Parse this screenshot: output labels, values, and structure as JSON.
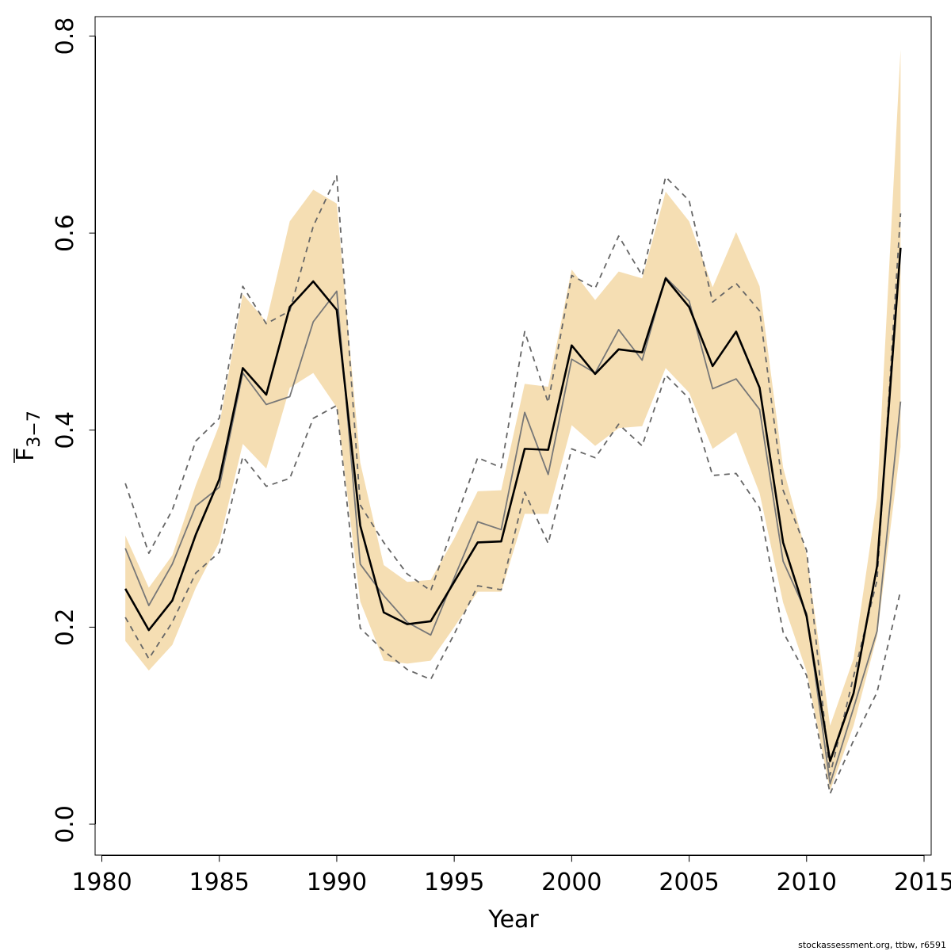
{
  "chart_data": {
    "type": "line",
    "xlabel": "Year",
    "ylabel_main": "F",
    "ylabel_sub": "3−7",
    "xlim": [
      1980,
      2015
    ],
    "ylim": [
      0.0,
      0.8
    ],
    "x_ticks": [
      1980,
      1985,
      1990,
      1995,
      2000,
      2005,
      2010,
      2015
    ],
    "x_tick_labels": [
      "1980",
      "1985",
      "1990",
      "1995",
      "2000",
      "2005",
      "2010",
      "2015"
    ],
    "y_ticks": [
      0.0,
      0.2,
      0.4,
      0.6,
      0.8
    ],
    "y_tick_labels": [
      "0.0",
      "0.2",
      "0.4",
      "0.6",
      "0.8"
    ],
    "grid": false,
    "legend": "none",
    "x": [
      1981,
      1982,
      1983,
      1984,
      1985,
      1986,
      1987,
      1988,
      1989,
      1990,
      1991,
      1992,
      1993,
      1994,
      1995,
      1996,
      1997,
      1998,
      1999,
      2000,
      2001,
      2002,
      2003,
      2004,
      2005,
      2006,
      2007,
      2008,
      2009,
      2010,
      2011,
      2012,
      2013,
      2014
    ],
    "series": [
      {
        "role": "band_lower",
        "color": "#f5deb3",
        "values": [
          0.186,
          0.156,
          0.182,
          0.24,
          0.286,
          0.386,
          0.361,
          0.443,
          0.458,
          0.423,
          0.226,
          0.166,
          0.163,
          0.166,
          0.2,
          0.236,
          0.236,
          0.315,
          0.315,
          0.405,
          0.384,
          0.402,
          0.404,
          0.463,
          0.438,
          0.381,
          0.398,
          0.336,
          0.225,
          0.155,
          0.034,
          0.1,
          0.191,
          0.383
        ]
      },
      {
        "role": "band_upper",
        "color": "#f5deb3",
        "values": [
          0.293,
          0.24,
          0.273,
          0.344,
          0.405,
          0.538,
          0.51,
          0.612,
          0.644,
          0.63,
          0.367,
          0.263,
          0.246,
          0.248,
          0.29,
          0.338,
          0.339,
          0.447,
          0.444,
          0.563,
          0.532,
          0.561,
          0.554,
          0.642,
          0.612,
          0.545,
          0.601,
          0.546,
          0.362,
          0.274,
          0.1,
          0.168,
          0.331,
          0.786
        ]
      },
      {
        "role": "dashed_upper",
        "color": "#666666",
        "values": [
          0.346,
          0.275,
          0.319,
          0.389,
          0.412,
          0.546,
          0.508,
          0.521,
          0.607,
          0.658,
          0.324,
          0.286,
          0.254,
          0.237,
          0.305,
          0.372,
          0.362,
          0.5,
          0.428,
          0.557,
          0.544,
          0.597,
          0.557,
          0.657,
          0.633,
          0.53,
          0.549,
          0.521,
          0.339,
          0.278,
          0.05,
          0.15,
          0.248,
          0.62
        ]
      },
      {
        "role": "dashed_lower",
        "color": "#666666",
        "values": [
          0.21,
          0.168,
          0.205,
          0.255,
          0.276,
          0.373,
          0.343,
          0.351,
          0.412,
          0.425,
          0.199,
          0.176,
          0.157,
          0.147,
          0.193,
          0.242,
          0.238,
          0.337,
          0.285,
          0.381,
          0.372,
          0.406,
          0.384,
          0.456,
          0.432,
          0.354,
          0.356,
          0.321,
          0.195,
          0.151,
          0.031,
          0.085,
          0.134,
          0.237
        ]
      },
      {
        "role": "grey_line",
        "color": "#777777",
        "values": [
          0.28,
          0.222,
          0.264,
          0.323,
          0.342,
          0.458,
          0.426,
          0.434,
          0.51,
          0.541,
          0.264,
          0.232,
          0.205,
          0.192,
          0.25,
          0.307,
          0.299,
          0.418,
          0.355,
          0.472,
          0.458,
          0.502,
          0.471,
          0.555,
          0.531,
          0.442,
          0.452,
          0.421,
          0.267,
          0.214,
          0.041,
          0.118,
          0.196,
          0.429
        ]
      },
      {
        "role": "main_line",
        "color": "#000000",
        "values": [
          0.239,
          0.197,
          0.227,
          0.294,
          0.35,
          0.463,
          0.436,
          0.525,
          0.551,
          0.522,
          0.303,
          0.215,
          0.203,
          0.206,
          0.246,
          0.286,
          0.287,
          0.381,
          0.38,
          0.486,
          0.457,
          0.482,
          0.479,
          0.554,
          0.525,
          0.465,
          0.5,
          0.443,
          0.286,
          0.211,
          0.064,
          0.133,
          0.262,
          0.585
        ]
      }
    ]
  },
  "footer": {
    "credit": "stockassessment.org, ttbw, r6591"
  }
}
